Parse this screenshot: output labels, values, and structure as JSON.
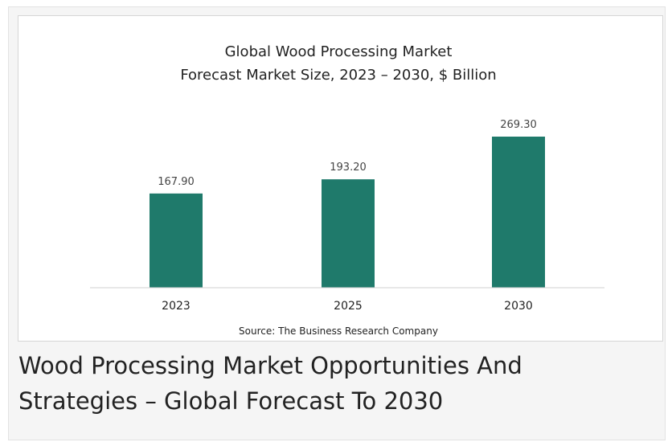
{
  "caption": "Wood Processing Market Opportunities And Strategies – Global Forecast To 2030",
  "colors": {
    "bar": "#1f7a6b",
    "axis": "#d0d0d0",
    "text": "#222222"
  },
  "chart_data": {
    "type": "bar",
    "title": "Global Wood Processing Market",
    "subtitle": "Forecast Market Size, 2023 – 2030, $ Billion",
    "categories": [
      "2023",
      "2025",
      "2030"
    ],
    "values": [
      167.9,
      193.2,
      269.3
    ],
    "value_labels": [
      "167.90",
      "193.20",
      "269.30"
    ],
    "ylim": [
      0,
      280
    ],
    "grid": false,
    "legend": "none",
    "source": "Source: The Business Research Company"
  }
}
